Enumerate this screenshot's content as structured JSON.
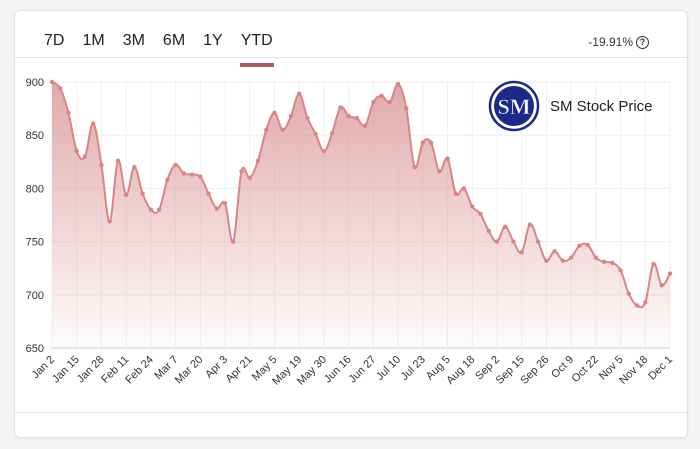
{
  "tabs": [
    {
      "label": "7D"
    },
    {
      "label": "1M"
    },
    {
      "label": "3M"
    },
    {
      "label": "6M"
    },
    {
      "label": "1Y"
    },
    {
      "label": "YTD",
      "active": true
    }
  ],
  "change": {
    "value": "-19.91%",
    "icon": "question-circle-icon"
  },
  "logo": {
    "text": "SM",
    "color": "#1b2a8a"
  },
  "colors": {
    "line": "#d98585",
    "fill_top": "#dc9a9a",
    "accent": "#b05a5a"
  },
  "chart_data": {
    "type": "area",
    "legend": "SM Stock Price",
    "legend_position": "top-right",
    "ylim": [
      650,
      900
    ],
    "yticks": [
      650,
      700,
      750,
      800,
      850,
      900
    ],
    "grid": true,
    "xtick_labels": [
      "Jan 2",
      "Jan 15",
      "Jan 28",
      "Feb 11",
      "Feb 24",
      "Mar 7",
      "Mar 20",
      "Apr 3",
      "Apr 21",
      "May 5",
      "May 19",
      "May 30",
      "Jun 16",
      "Jun 27",
      "Jul 10",
      "Jul 23",
      "Aug 5",
      "Aug 18",
      "Sep 2",
      "Sep 15",
      "Sep 26",
      "Oct 9",
      "Oct 22",
      "Nov 5",
      "Nov 18",
      "Dec 1"
    ],
    "values": [
      900,
      894,
      871,
      835,
      830,
      861,
      822,
      769,
      826,
      794,
      820,
      795,
      780,
      780,
      808,
      822,
      814,
      813,
      811,
      795,
      781,
      786,
      750,
      816,
      810,
      826,
      855,
      871,
      855,
      868,
      889,
      866,
      851,
      835,
      852,
      876,
      868,
      866,
      859,
      881,
      887,
      881,
      898,
      875,
      820,
      843,
      843,
      816,
      828,
      795,
      800,
      783,
      776,
      760,
      750,
      764,
      750,
      740,
      766,
      750,
      732,
      741,
      732,
      735,
      746,
      747,
      735,
      731,
      730,
      723,
      701,
      690,
      693,
      729,
      709,
      720
    ]
  }
}
